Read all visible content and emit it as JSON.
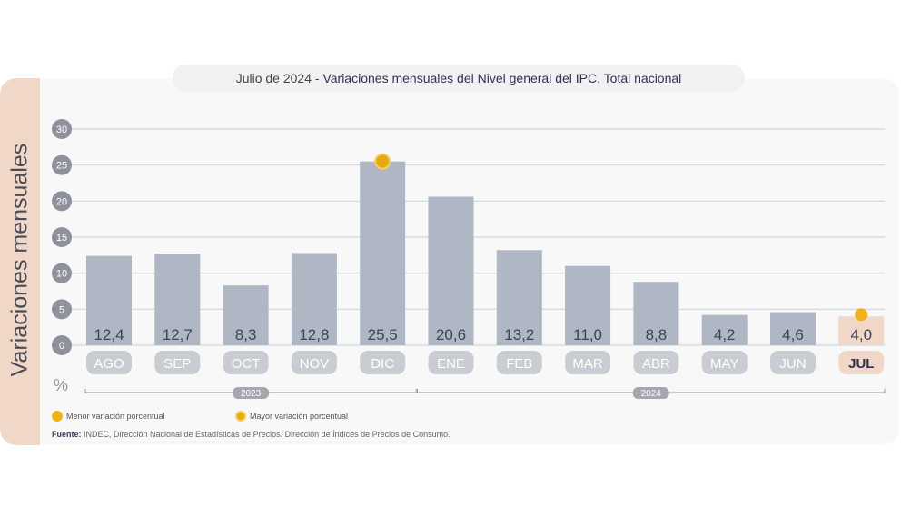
{
  "title": {
    "prefix": "Julio de 2024",
    "separator": " - ",
    "main": "Variaciones mensuales del Nivel general del IPC. Total nacional"
  },
  "chart_data": {
    "type": "bar",
    "title": "Julio de 2024 - Variaciones mensuales del Nivel general del IPC. Total nacional",
    "ylabel": "Variaciones mensuales",
    "yunit": "%",
    "ylim": [
      0,
      30
    ],
    "yticks": [
      0,
      5,
      10,
      15,
      20,
      25,
      30
    ],
    "grid": true,
    "categories": [
      "AGO",
      "SEP",
      "OCT",
      "NOV",
      "DIC",
      "ENE",
      "FEB",
      "MAR",
      "ABR",
      "MAY",
      "JUN",
      "JUL"
    ],
    "values": [
      12.4,
      12.7,
      8.3,
      12.8,
      25.5,
      20.6,
      13.2,
      11.0,
      8.8,
      4.2,
      4.6,
      4.0
    ],
    "value_labels": [
      "12,4",
      "12,7",
      "8,3",
      "12,8",
      "25,5",
      "20,6",
      "13,2",
      "11,0",
      "8,8",
      "4,2",
      "4,6",
      "4,0"
    ],
    "year_groups": [
      {
        "label": "2023",
        "from": "AGO",
        "to": "DIC"
      },
      {
        "label": "2024",
        "from": "ENE",
        "to": "JUL"
      }
    ],
    "highlight": {
      "max": "DIC",
      "min": "JUL",
      "current": "JUL"
    },
    "colors": {
      "bar": "#aeb7c3",
      "bar_current": "#f1d7c7",
      "marker": "#efb21d",
      "label_pill": "#c9ccd3"
    }
  },
  "legend": {
    "min": "Menor variación porcentual",
    "max": "Mayor variación porcentual"
  },
  "source": {
    "label": "Fuente:",
    "text": " INDEC, Dirección Nacional de Estadísticas de Precios. Dirección de Índices de Precios de Consumo."
  }
}
